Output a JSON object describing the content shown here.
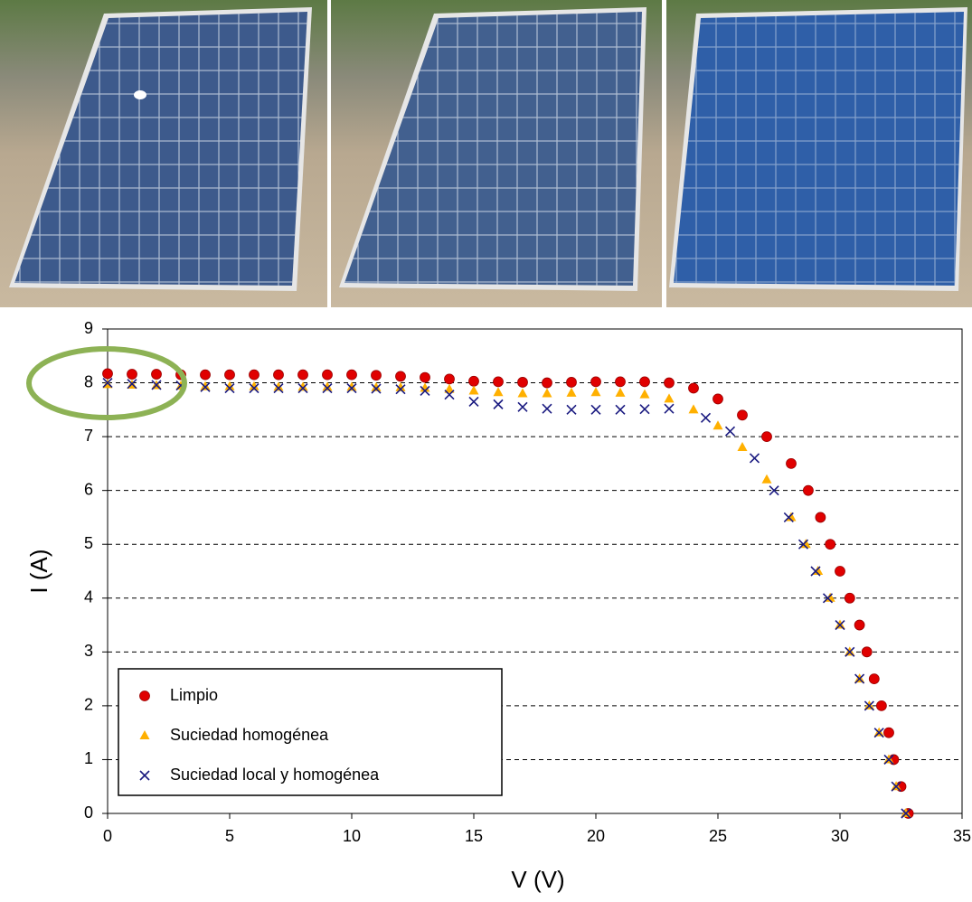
{
  "chart_data": {
    "type": "scatter",
    "xlabel": "V (V)",
    "ylabel": "I (A)",
    "xlim": [
      0,
      35
    ],
    "xticks": [
      0,
      5,
      10,
      15,
      20,
      25,
      30,
      35
    ],
    "ylim": [
      0,
      9
    ],
    "yticks": [
      0,
      1,
      2,
      3,
      4,
      5,
      6,
      7,
      8,
      9
    ],
    "grid": true,
    "legend": "lower left",
    "series": [
      {
        "name": "Limpio",
        "color": "#e00000",
        "marker": "circle",
        "x": [
          0,
          1,
          2,
          3,
          4,
          5,
          6,
          7,
          8,
          9,
          10,
          11,
          12,
          13,
          14,
          15,
          16,
          17,
          18,
          19,
          20,
          21,
          22,
          23,
          24,
          25,
          26,
          27,
          28,
          28.7,
          29.2,
          29.6,
          30,
          30.4,
          30.8,
          31.1,
          31.4,
          31.7,
          32,
          32.2,
          32.5,
          32.8
        ],
        "values": [
          8.17,
          8.16,
          8.16,
          8.15,
          8.15,
          8.15,
          8.15,
          8.15,
          8.15,
          8.15,
          8.15,
          8.14,
          8.12,
          8.1,
          8.07,
          8.03,
          8.02,
          8.01,
          8.0,
          8.01,
          8.02,
          8.02,
          8.02,
          8.0,
          7.9,
          7.7,
          7.4,
          7.0,
          6.5,
          6.0,
          5.5,
          5.0,
          4.5,
          4.0,
          3.5,
          3.0,
          2.5,
          2.0,
          1.5,
          1.0,
          0.5,
          0
        ]
      },
      {
        "name": "Suciedad homogénea",
        "color": "#ffb000",
        "marker": "triangle",
        "x": [
          0,
          1,
          2,
          3,
          4,
          5,
          6,
          7,
          8,
          9,
          10,
          11,
          12,
          13,
          14,
          15,
          16,
          17,
          18,
          19,
          20,
          21,
          22,
          23,
          24,
          25,
          26,
          27,
          28,
          28.6,
          29.1,
          29.6,
          30,
          30.4,
          30.8,
          31.2,
          31.6,
          32,
          32.3,
          32.7
        ],
        "values": [
          7.97,
          7.96,
          7.95,
          7.94,
          7.93,
          7.93,
          7.93,
          7.92,
          7.92,
          7.92,
          7.92,
          7.91,
          7.91,
          7.9,
          7.88,
          7.85,
          7.82,
          7.8,
          7.8,
          7.81,
          7.82,
          7.81,
          7.78,
          7.7,
          7.5,
          7.2,
          6.8,
          6.2,
          5.5,
          5.0,
          4.5,
          4.0,
          3.5,
          3.0,
          2.5,
          2.0,
          1.5,
          1.0,
          0.5,
          0
        ]
      },
      {
        "name": "Suciedad local y homogénea",
        "color": "#1a1a80",
        "marker": "cross",
        "x": [
          0,
          1,
          2,
          3,
          4,
          5,
          6,
          7,
          8,
          9,
          10,
          11,
          12,
          13,
          14,
          15,
          16,
          17,
          18,
          19,
          20,
          21,
          22,
          23,
          24.5,
          25.5,
          26.5,
          27.3,
          27.9,
          28.5,
          29,
          29.5,
          30,
          30.4,
          30.8,
          31.2,
          31.6,
          32,
          32.3,
          32.7
        ],
        "values": [
          8.0,
          7.98,
          7.96,
          7.95,
          7.92,
          7.9,
          7.9,
          7.9,
          7.9,
          7.9,
          7.9,
          7.89,
          7.88,
          7.85,
          7.78,
          7.65,
          7.6,
          7.55,
          7.52,
          7.5,
          7.5,
          7.5,
          7.51,
          7.52,
          7.35,
          7.1,
          6.6,
          6.0,
          5.5,
          5.0,
          4.5,
          4.0,
          3.5,
          3.0,
          2.5,
          2.0,
          1.5,
          1.0,
          0.5,
          0
        ]
      }
    ]
  }
}
